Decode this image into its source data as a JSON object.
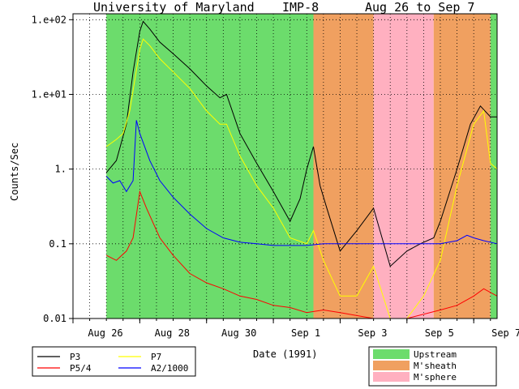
{
  "chart_data": {
    "type": "line",
    "title_parts": [
      "University of Maryland",
      "IMP-8",
      "Aug 26 to Sep 7"
    ],
    "xlabel": "Date (1991)",
    "ylabel": "Counts/Sec",
    "yscale": "log",
    "ylim": [
      0.01,
      120
    ],
    "xlim": [
      0,
      12.7
    ],
    "x_unit": "days since Aug 26 00:00",
    "x_ticks": [
      {
        "x": 0,
        "label": "Aug 26"
      },
      {
        "x": 2,
        "label": "Aug 28"
      },
      {
        "x": 4,
        "label": "Aug 30"
      },
      {
        "x": 6,
        "label": "Sep 1"
      },
      {
        "x": 8,
        "label": "Sep 3"
      },
      {
        "x": 10,
        "label": "Sep 5"
      },
      {
        "x": 12,
        "label": "Sep 7"
      }
    ],
    "y_ticks": [
      {
        "y": 0.01,
        "label": "0.01"
      },
      {
        "y": 0.1,
        "label": "0.1"
      },
      {
        "y": 1,
        "label": "1."
      },
      {
        "y": 10,
        "label": "1.e+01"
      },
      {
        "y": 100,
        "label": "1.e+02"
      }
    ],
    "regions": [
      {
        "start": 1.0,
        "end": 7.2,
        "type": "Upstream"
      },
      {
        "start": 7.2,
        "end": 9.0,
        "type": "M'sheath"
      },
      {
        "start": 9.0,
        "end": 10.8,
        "type": "M'sphere"
      },
      {
        "start": 10.8,
        "end": 12.5,
        "type": "M'sheath"
      },
      {
        "start": 12.5,
        "end": 12.7,
        "type": "Upstream"
      }
    ],
    "region_colors": {
      "Upstream": "#6cdc6c",
      "M'sheath": "#f0a060",
      "M'sphere": "#ffb0c0"
    },
    "series": [
      {
        "name": "P3",
        "color": "#000000",
        "points": [
          [
            1.0,
            0.9
          ],
          [
            1.3,
            1.3
          ],
          [
            1.6,
            4
          ],
          [
            1.8,
            20
          ],
          [
            2.0,
            70
          ],
          [
            2.1,
            95
          ],
          [
            2.3,
            75
          ],
          [
            2.6,
            50
          ],
          [
            3.0,
            35
          ],
          [
            3.5,
            22
          ],
          [
            4.0,
            13
          ],
          [
            4.4,
            9
          ],
          [
            4.6,
            10
          ],
          [
            5.0,
            3
          ],
          [
            5.5,
            1.2
          ],
          [
            6.0,
            0.5
          ],
          [
            6.5,
            0.2
          ],
          [
            6.8,
            0.4
          ],
          [
            7.0,
            1
          ],
          [
            7.2,
            2
          ],
          [
            7.4,
            0.6
          ],
          [
            7.6,
            0.3
          ],
          [
            8.0,
            0.08
          ],
          [
            8.5,
            0.15
          ],
          [
            9.0,
            0.3
          ],
          [
            9.5,
            0.05
          ],
          [
            10.0,
            0.08
          ],
          [
            10.4,
            0.1
          ],
          [
            10.8,
            0.12
          ],
          [
            11.0,
            0.2
          ],
          [
            11.5,
            1
          ],
          [
            11.9,
            4
          ],
          [
            12.2,
            7
          ],
          [
            12.5,
            5
          ],
          [
            12.7,
            5
          ]
        ]
      },
      {
        "name": "P7",
        "color": "#ffff00",
        "points": [
          [
            1.0,
            2.0
          ],
          [
            1.3,
            2.5
          ],
          [
            1.5,
            3
          ],
          [
            1.7,
            6
          ],
          [
            2.0,
            40
          ],
          [
            2.1,
            55
          ],
          [
            2.3,
            45
          ],
          [
            2.6,
            30
          ],
          [
            3.0,
            20
          ],
          [
            3.5,
            12
          ],
          [
            4.0,
            6
          ],
          [
            4.4,
            4
          ],
          [
            4.6,
            4
          ],
          [
            5.0,
            1.5
          ],
          [
            5.5,
            0.6
          ],
          [
            6.0,
            0.3
          ],
          [
            6.5,
            0.12
          ],
          [
            7.0,
            0.1
          ],
          [
            7.2,
            0.15
          ],
          [
            7.5,
            0.06
          ],
          [
            8.0,
            0.02
          ],
          [
            8.5,
            0.02
          ],
          [
            9.0,
            0.05
          ],
          [
            9.5,
            0.01
          ],
          [
            10.0,
            0.01
          ],
          [
            10.5,
            0.02
          ],
          [
            11.0,
            0.06
          ],
          [
            11.5,
            0.6
          ],
          [
            12.0,
            4
          ],
          [
            12.3,
            6
          ],
          [
            12.5,
            1.2
          ],
          [
            12.7,
            1.0
          ]
        ]
      },
      {
        "name": "P5/4",
        "color": "#ff0000",
        "points": [
          [
            1.0,
            0.07
          ],
          [
            1.3,
            0.06
          ],
          [
            1.6,
            0.08
          ],
          [
            1.8,
            0.12
          ],
          [
            2.0,
            0.5
          ],
          [
            2.2,
            0.3
          ],
          [
            2.6,
            0.12
          ],
          [
            3.0,
            0.07
          ],
          [
            3.5,
            0.04
          ],
          [
            4.0,
            0.03
          ],
          [
            4.5,
            0.025
          ],
          [
            5.0,
            0.02
          ],
          [
            5.5,
            0.018
          ],
          [
            6.0,
            0.015
          ],
          [
            6.5,
            0.014
          ],
          [
            7.0,
            0.012
          ],
          [
            7.5,
            0.013
          ],
          [
            8.0,
            0.012
          ],
          [
            9.0,
            0.01
          ],
          [
            10.0,
            0.01
          ],
          [
            11.0,
            0.013
          ],
          [
            11.5,
            0.015
          ],
          [
            12.0,
            0.02
          ],
          [
            12.3,
            0.025
          ],
          [
            12.7,
            0.02
          ]
        ]
      },
      {
        "name": "A2/1000",
        "color": "#0000ff",
        "points": [
          [
            1.0,
            0.8
          ],
          [
            1.2,
            0.65
          ],
          [
            1.4,
            0.7
          ],
          [
            1.6,
            0.5
          ],
          [
            1.8,
            0.7
          ],
          [
            1.9,
            4.5
          ],
          [
            2.0,
            3
          ],
          [
            2.3,
            1.3
          ],
          [
            2.6,
            0.7
          ],
          [
            3.0,
            0.42
          ],
          [
            3.5,
            0.25
          ],
          [
            4.0,
            0.16
          ],
          [
            4.5,
            0.12
          ],
          [
            5.0,
            0.105
          ],
          [
            5.5,
            0.1
          ],
          [
            6.0,
            0.095
          ],
          [
            6.5,
            0.095
          ],
          [
            7.0,
            0.095
          ],
          [
            7.5,
            0.1
          ],
          [
            8.0,
            0.1
          ],
          [
            9.0,
            0.1
          ],
          [
            10.0,
            0.1
          ],
          [
            10.8,
            0.1
          ],
          [
            11.0,
            0.1
          ],
          [
            11.5,
            0.11
          ],
          [
            11.8,
            0.13
          ],
          [
            12.0,
            0.12
          ],
          [
            12.3,
            0.11
          ],
          [
            12.7,
            0.1
          ]
        ]
      }
    ]
  },
  "legend_left": {
    "entries": [
      {
        "name": "P3",
        "color": "#000000"
      },
      {
        "name": "P7",
        "color": "#ffff00"
      },
      {
        "name": "P5/4",
        "color": "#ff0000"
      },
      {
        "name": "A2/1000",
        "color": "#0000ff"
      }
    ]
  },
  "legend_right": {
    "entries": [
      {
        "label": "Upstream",
        "color": "#6cdc6c"
      },
      {
        "label": "M'sheath",
        "color": "#f0a060"
      },
      {
        "label": "M'sphere",
        "color": "#ffb0c0"
      }
    ]
  }
}
